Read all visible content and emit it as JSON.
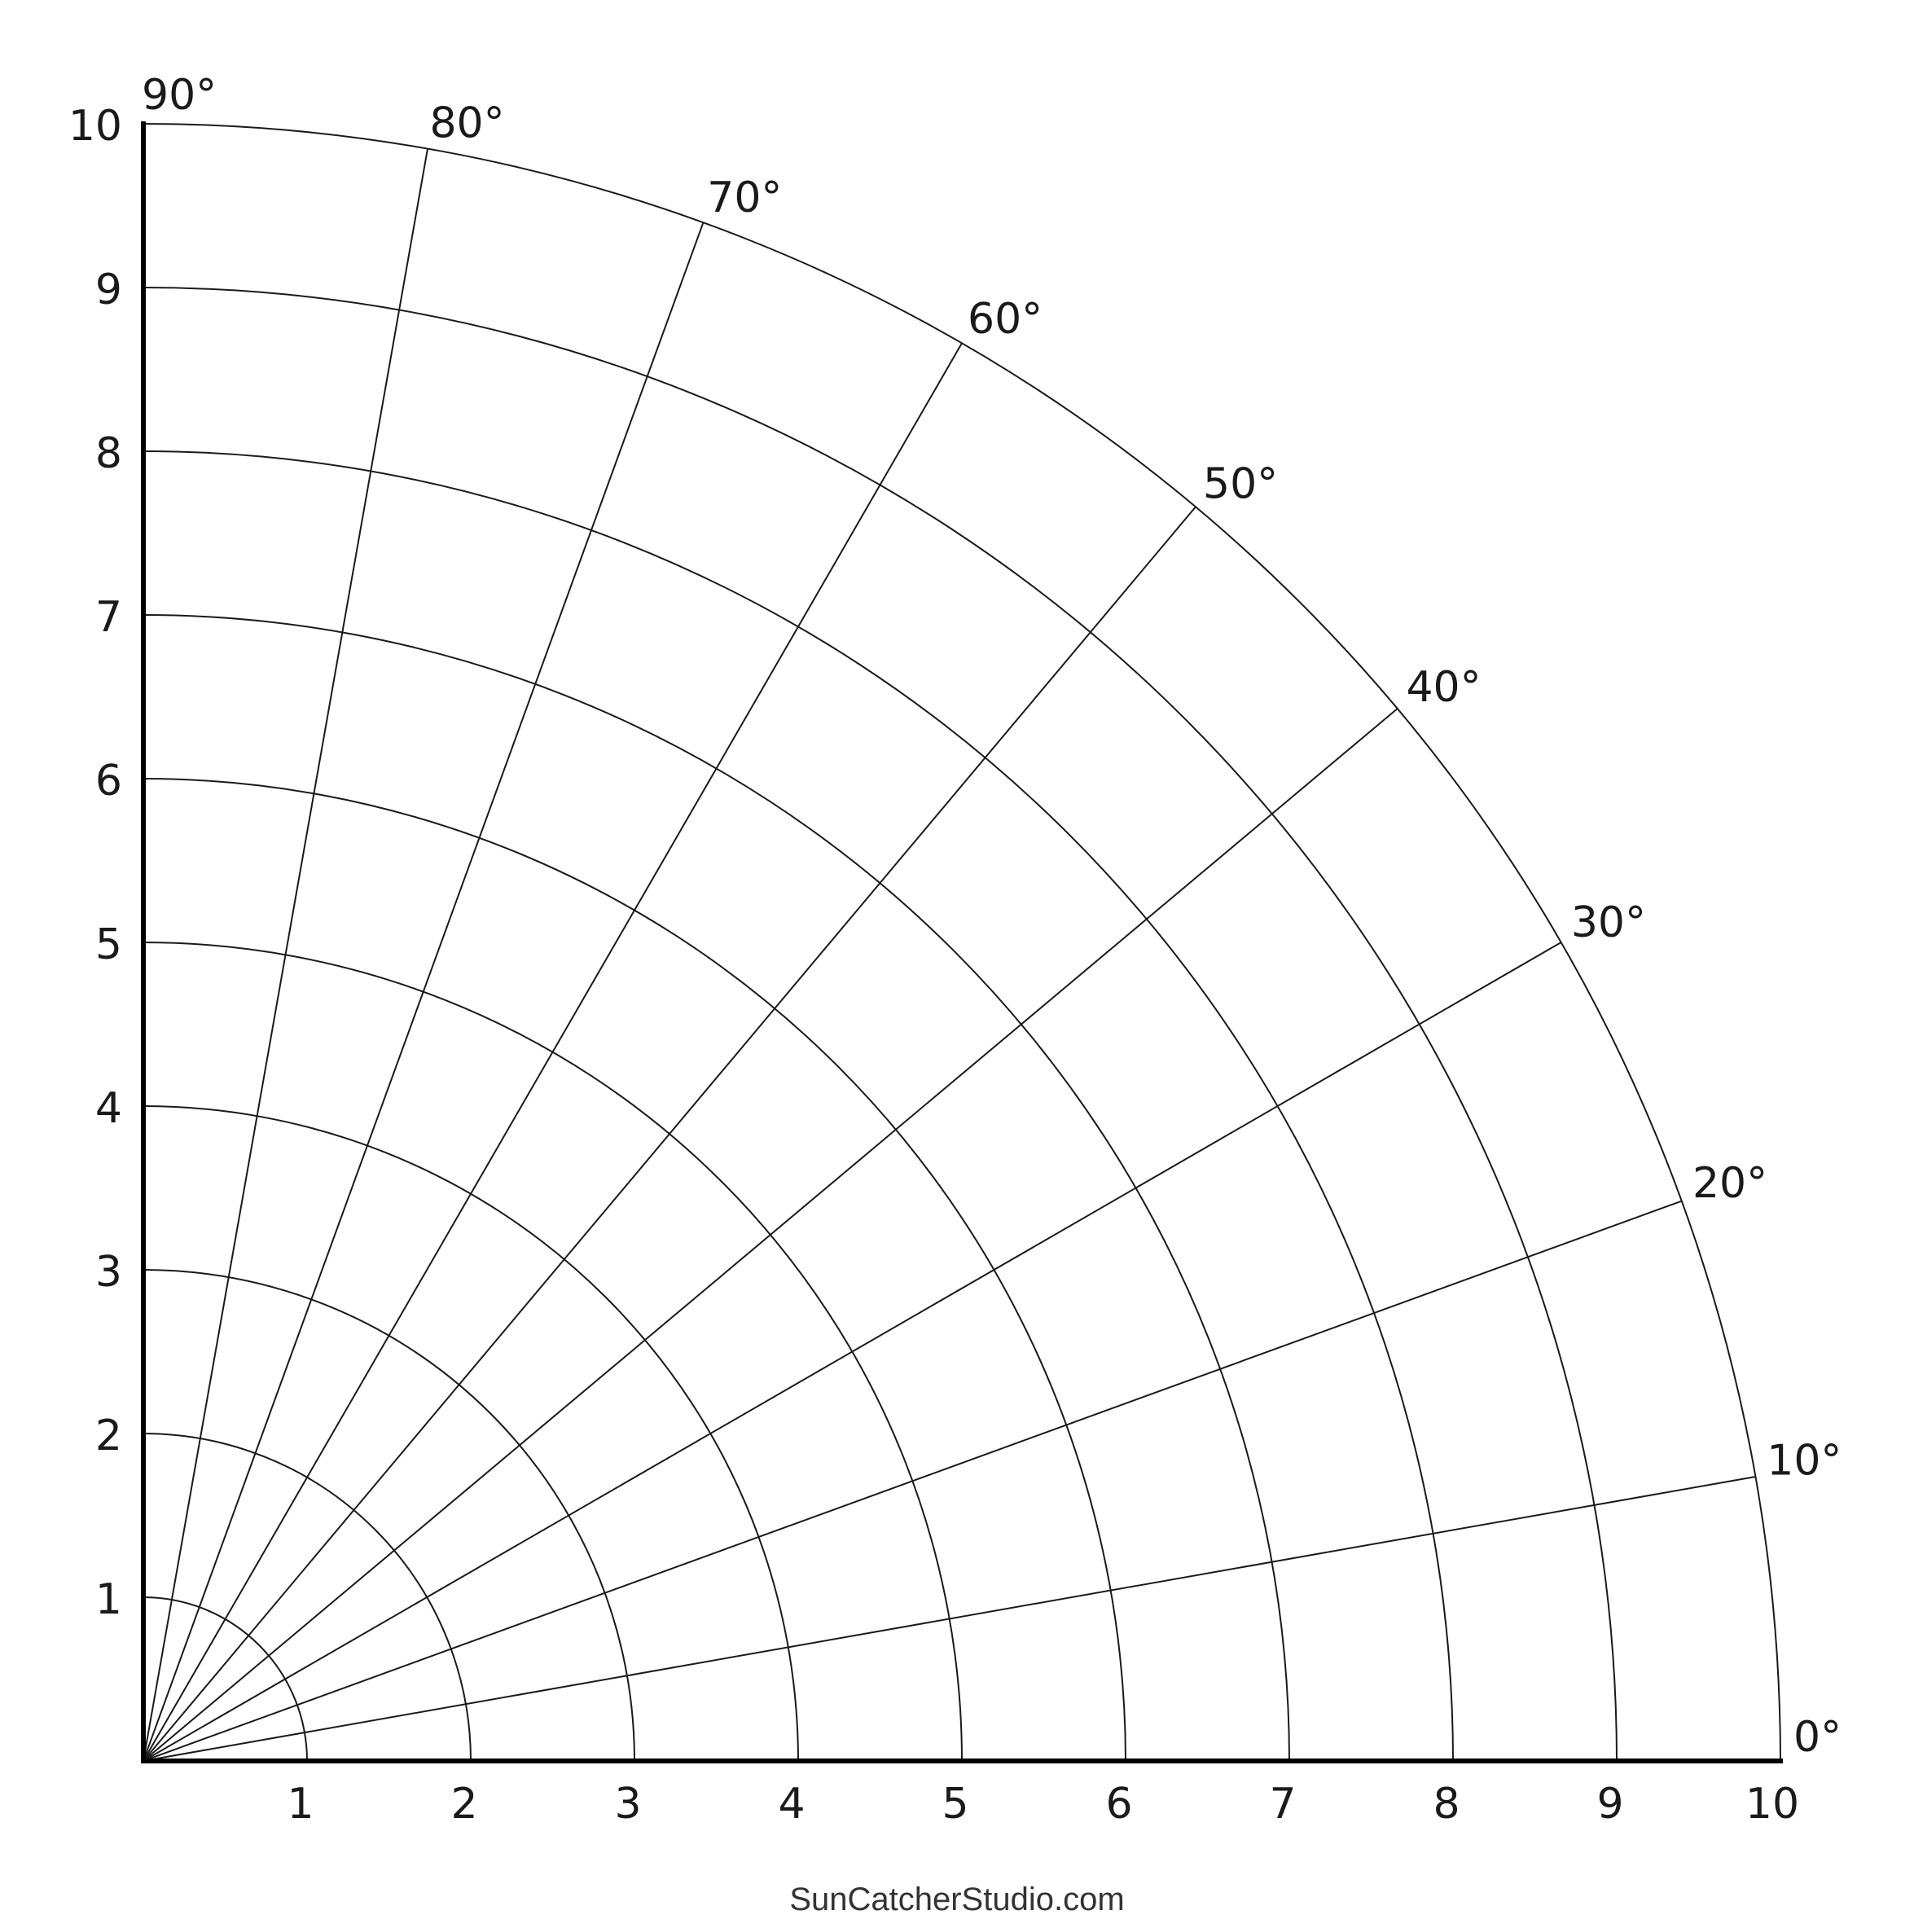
{
  "chart": {
    "type": "polar-grid-quadrant",
    "radius_max": 10,
    "radius_step": 1,
    "radial_labels": [
      "1",
      "2",
      "3",
      "4",
      "5",
      "6",
      "7",
      "8",
      "9",
      "10"
    ],
    "angle_degrees": [
      0,
      10,
      20,
      30,
      40,
      50,
      60,
      70,
      80,
      90
    ],
    "angle_labels": [
      "0°",
      "10°",
      "20°",
      "30°",
      "40°",
      "50°",
      "60°",
      "70°",
      "80°",
      "90°"
    ],
    "line_color": "#1a1a1a",
    "axis_color": "#000000"
  },
  "footer": {
    "credit": "SunCatcherStudio.com"
  }
}
